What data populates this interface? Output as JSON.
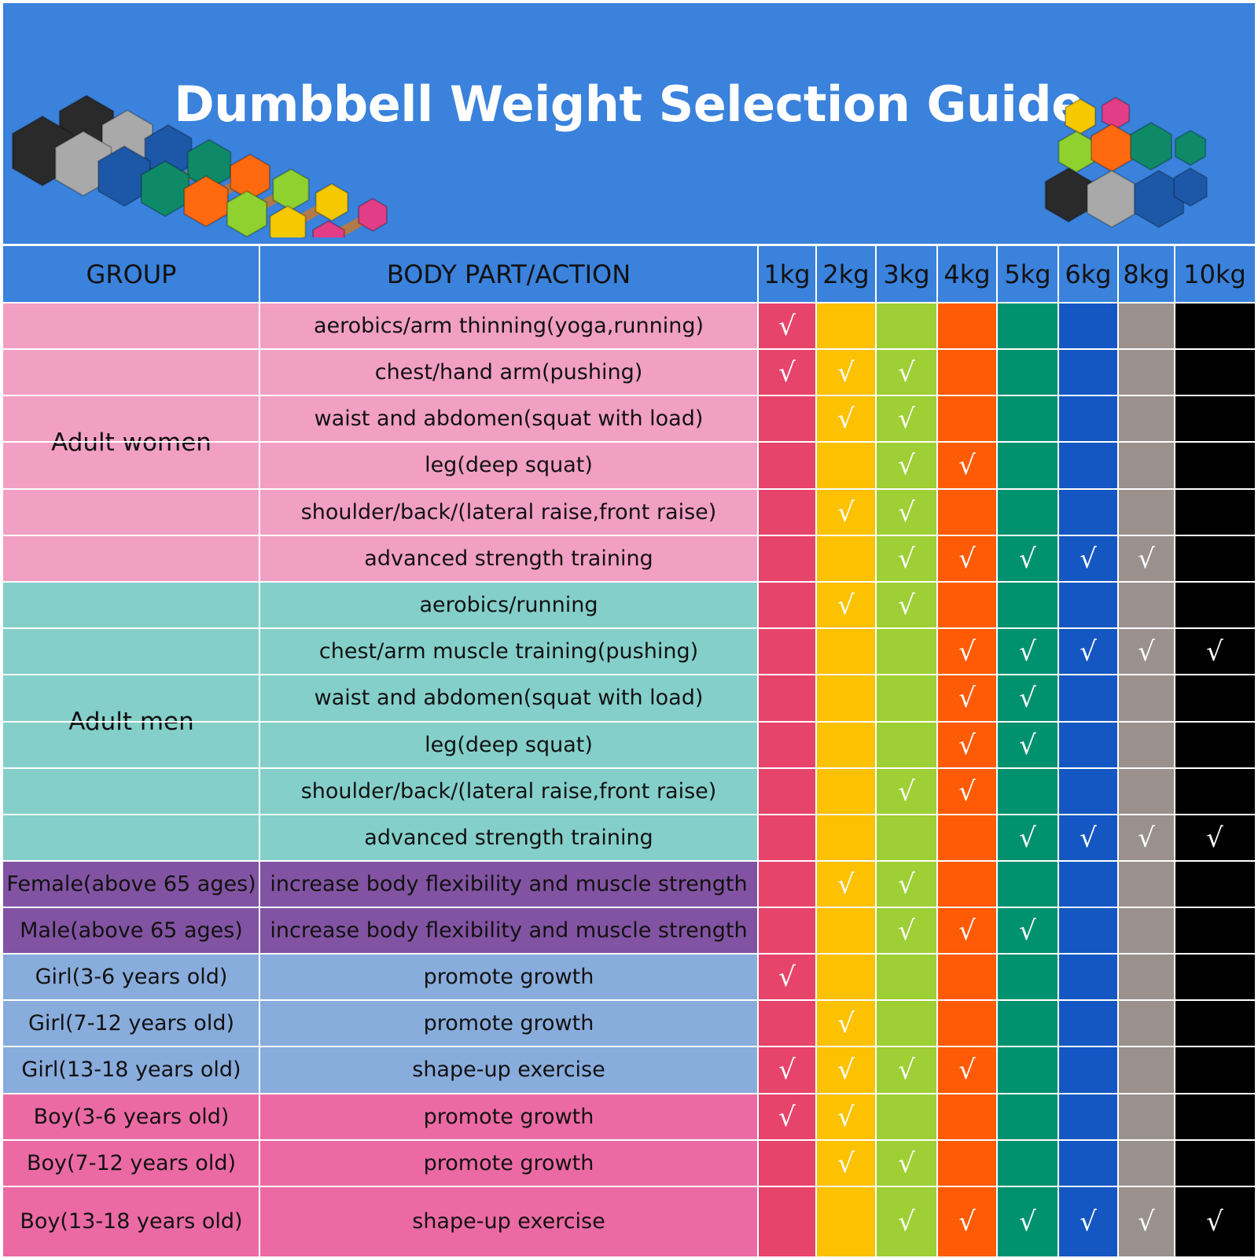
{
  "title": "Dumbbell Weight Selection Guide",
  "colors": {
    "header_bg": "#3a82dc",
    "adult_women_bg": "#f29fc4",
    "adult_men_bg": "#84cfca",
    "seniors_bg": "#8253a2",
    "girls_bg": "#88acdc",
    "boys_bg": "#ec6aa4"
  },
  "header": {
    "group": "GROUP",
    "action": "BODY PART/ACTION",
    "weights": [
      "1kg",
      "2kg",
      "3kg",
      "4kg",
      "5kg",
      "6kg",
      "8kg",
      "10kg"
    ]
  },
  "weight_colors": [
    "#e7446b",
    "#fcc100",
    "#9ecf34",
    "#ff5a05",
    "#00916f",
    "#1457c2",
    "#9a918d",
    "#000000"
  ],
  "groups": [
    {
      "label": "Adult women"
    },
    {
      "label": "Adult men"
    },
    {
      "label": "Female(above 65 ages)"
    },
    {
      "label": "Male(above 65 ages)"
    },
    {
      "label": "Girl(3-6 years old)"
    },
    {
      "label": "Girl(7-12 years old)"
    },
    {
      "label": "Girl(13-18 years old)"
    },
    {
      "label": "Boy(3-6 years old)"
    },
    {
      "label": "Boy(7-12 years old)"
    },
    {
      "label": "Boy(13-18 years old)"
    }
  ],
  "rows": [
    {
      "action": "aerobics/arm thinning(yoga,running)",
      "checks": [
        1,
        0,
        0,
        0,
        0,
        0,
        0,
        0
      ]
    },
    {
      "action": "chest/hand arm(pushing)",
      "checks": [
        1,
        1,
        1,
        0,
        0,
        0,
        0,
        0
      ]
    },
    {
      "action": "waist and abdomen(squat with load)",
      "checks": [
        0,
        1,
        1,
        0,
        0,
        0,
        0,
        0
      ]
    },
    {
      "action": "leg(deep squat)",
      "checks": [
        0,
        0,
        1,
        1,
        0,
        0,
        0,
        0
      ]
    },
    {
      "action": "shoulder/back/(lateral raise,front raise)",
      "checks": [
        0,
        1,
        1,
        0,
        0,
        0,
        0,
        0
      ]
    },
    {
      "action": "advanced strength training",
      "checks": [
        0,
        0,
        1,
        1,
        1,
        1,
        1,
        0
      ]
    },
    {
      "action": "aerobics/running",
      "checks": [
        0,
        1,
        1,
        0,
        0,
        0,
        0,
        0
      ]
    },
    {
      "action": "chest/arm muscle training(pushing)",
      "checks": [
        0,
        0,
        0,
        1,
        1,
        1,
        1,
        1
      ]
    },
    {
      "action": "waist and abdomen(squat with load)",
      "checks": [
        0,
        0,
        0,
        1,
        1,
        0,
        0,
        0
      ]
    },
    {
      "action": "leg(deep squat)",
      "checks": [
        0,
        0,
        0,
        1,
        1,
        0,
        0,
        0
      ]
    },
    {
      "action": "shoulder/back/(lateral raise,front raise)",
      "checks": [
        0,
        0,
        1,
        1,
        0,
        0,
        0,
        0
      ]
    },
    {
      "action": "advanced strength training",
      "checks": [
        0,
        0,
        0,
        0,
        1,
        1,
        1,
        1
      ]
    },
    {
      "action": "increase body flexibility and muscle strength",
      "checks": [
        0,
        1,
        1,
        0,
        0,
        0,
        0,
        0
      ]
    },
    {
      "action": "increase body flexibility and muscle strength",
      "checks": [
        0,
        0,
        1,
        1,
        1,
        0,
        0,
        0
      ]
    },
    {
      "action": "promote growth",
      "checks": [
        1,
        0,
        0,
        0,
        0,
        0,
        0,
        0
      ]
    },
    {
      "action": "promote growth",
      "checks": [
        0,
        1,
        0,
        0,
        0,
        0,
        0,
        0
      ]
    },
    {
      "action": "shape-up exercise",
      "checks": [
        1,
        1,
        1,
        1,
        0,
        0,
        0,
        0
      ]
    },
    {
      "action": "promote growth",
      "checks": [
        1,
        1,
        0,
        0,
        0,
        0,
        0,
        0
      ]
    },
    {
      "action": "promote growth",
      "checks": [
        0,
        1,
        1,
        0,
        0,
        0,
        0,
        0
      ]
    },
    {
      "action": "shape-up exercise",
      "checks": [
        0,
        0,
        1,
        1,
        1,
        1,
        1,
        1
      ]
    }
  ],
  "check_mark": "√"
}
